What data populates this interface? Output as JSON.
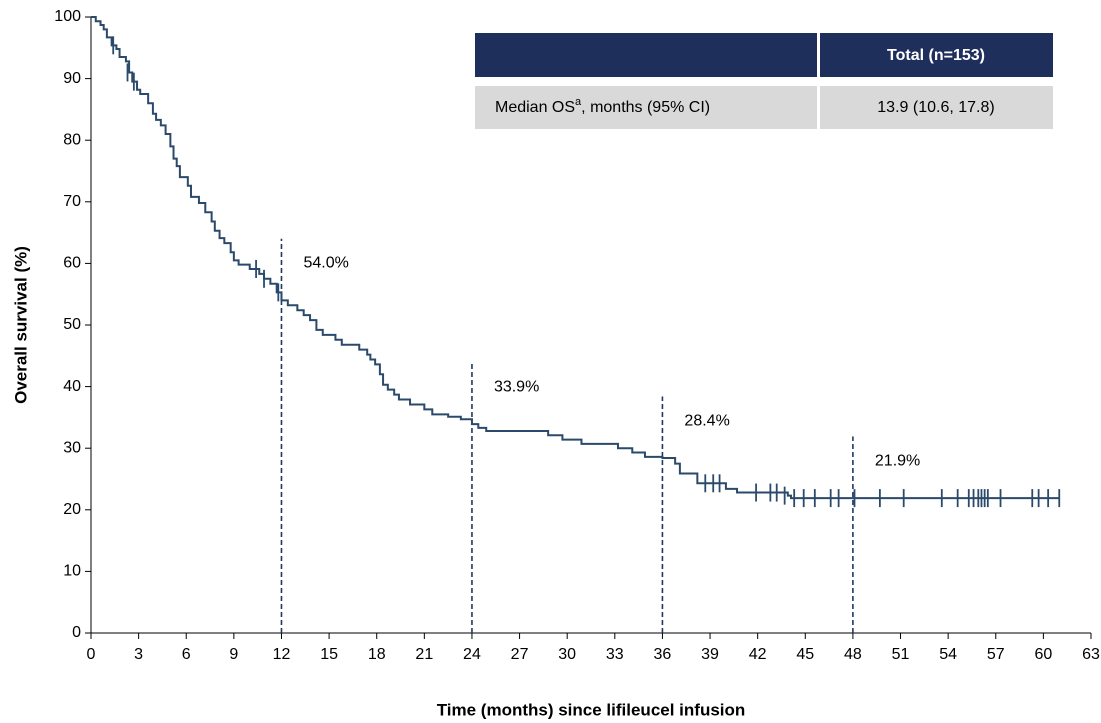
{
  "chart_data": {
    "type": "step",
    "xlabel": "Time (months) since lifileucel infusion",
    "ylabel": "Overall survival (%)",
    "x": [
      0,
      0.3,
      0.6,
      0.8,
      1.0,
      1.3,
      1.6,
      1.8,
      2.2,
      2.4,
      2.6,
      2.9,
      3.1,
      3.6,
      3.9,
      4.1,
      4.4,
      4.7,
      5.0,
      5.2,
      5.4,
      5.6,
      6.1,
      6.3,
      6.8,
      7.2,
      7.6,
      7.8,
      8.1,
      8.4,
      8.8,
      9.0,
      9.3,
      10.0,
      10.6,
      10.9,
      11.3,
      11.7,
      12.0,
      12.4,
      13.0,
      13.4,
      13.8,
      14.2,
      14.6,
      15.4,
      15.8,
      16.9,
      17.4,
      17.6,
      17.9,
      18.2,
      18.4,
      18.7,
      19.1,
      19.4,
      20.1,
      21.0,
      21.5,
      22.5,
      23.3,
      24.0,
      24.4,
      24.9,
      28.8,
      29.7,
      30.9,
      33.2,
      34.1,
      34.9,
      36.0,
      36.8,
      37.1,
      38.2,
      40.0,
      40.7,
      43.9,
      44.1,
      61.0
    ],
    "series": [
      {
        "color": "#2b4a6b",
        "values": [
          100,
          99.3,
          98.7,
          98,
          96.7,
          95.4,
          94.8,
          93.5,
          92.8,
          91,
          89.5,
          88.2,
          87.5,
          86,
          84.3,
          83.3,
          82.4,
          81,
          79,
          77,
          75.8,
          74,
          72.6,
          70.8,
          69.8,
          68.3,
          66.8,
          65.3,
          64.1,
          63.3,
          61.8,
          60.5,
          59.8,
          59.1,
          58.3,
          57.5,
          56.7,
          55.3,
          54.0,
          53.2,
          52.4,
          51.6,
          50.8,
          49.2,
          48.4,
          47.6,
          46.8,
          46.0,
          45.2,
          44.4,
          43.6,
          42.0,
          40.3,
          39.5,
          38.7,
          37.9,
          37.1,
          36.3,
          35.5,
          35.1,
          34.7,
          33.9,
          33.3,
          32.8,
          32.1,
          31.4,
          30.7,
          30.0,
          29.3,
          28.6,
          28.4,
          27.5,
          25.9,
          24.3,
          23.4,
          22.8,
          22.3,
          21.9,
          21.9
        ]
      }
    ],
    "censored": {
      "x": [
        1.4,
        2.3,
        2.7,
        10.4,
        10.9,
        11.8,
        38.7,
        39.2,
        39.6,
        41.9,
        42.8,
        43.2,
        43.7,
        44.3,
        44.9,
        45.6,
        46.6,
        47.1,
        48.1,
        49.7,
        51.2,
        53.6,
        54.6,
        55.3,
        55.6,
        55.9,
        56.1,
        56.3,
        56.5,
        57.3,
        59.3,
        59.7,
        60.3,
        61.0
      ],
      "y": [
        95.4,
        91,
        89.5,
        59.1,
        57.5,
        55.3,
        24.3,
        24.3,
        24.3,
        22.8,
        22.8,
        22.8,
        22.3,
        21.9,
        21.9,
        21.9,
        21.9,
        21.9,
        21.9,
        21.9,
        21.9,
        21.9,
        21.9,
        21.9,
        21.9,
        21.9,
        21.9,
        21.9,
        21.9,
        21.9,
        21.9,
        21.9,
        21.9,
        21.9
      ]
    },
    "landmarks": {
      "x": [
        12,
        24,
        36,
        48
      ],
      "values": [
        54.0,
        33.9,
        28.4,
        21.9
      ],
      "value_labels": [
        "54.0%",
        "33.9%",
        "28.4%",
        "21.9%"
      ]
    },
    "xlim": [
      0,
      63
    ],
    "xticks": [
      0,
      3,
      6,
      9,
      12,
      15,
      18,
      21,
      24,
      27,
      30,
      33,
      36,
      39,
      42,
      45,
      48,
      51,
      54,
      57,
      60,
      63
    ],
    "ylim": [
      0,
      100
    ],
    "yticks": [
      0,
      10,
      20,
      30,
      40,
      50,
      60,
      70,
      80,
      90,
      100
    ],
    "table": {
      "header": "Total (n=153)",
      "row_label": [
        "Median OS",
        "a",
        ", months (95% CI)"
      ],
      "value": "13.9 (10.6, 17.8)"
    }
  }
}
